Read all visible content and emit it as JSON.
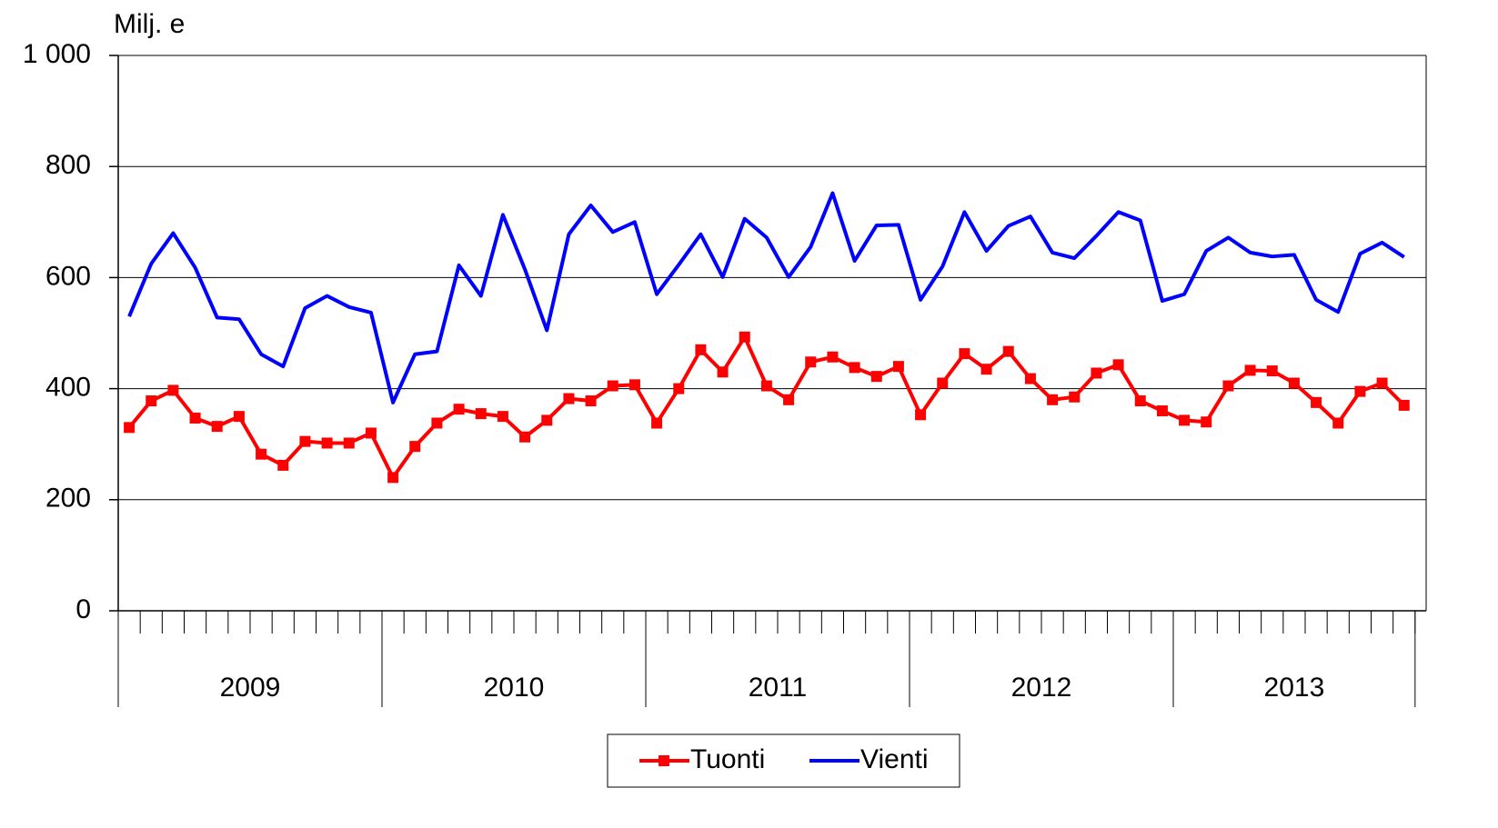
{
  "chart_data": {
    "type": "line",
    "y_axis_label": "Milj. e",
    "categories": [
      null,
      null,
      null,
      null,
      null,
      null,
      null,
      null,
      null,
      null,
      null,
      null,
      null,
      null,
      null,
      null,
      null,
      null,
      null,
      null,
      null,
      null,
      null,
      null,
      null,
      null,
      null,
      null,
      null,
      null,
      null,
      null,
      null,
      null,
      null,
      null,
      null,
      null,
      null,
      null,
      null,
      null,
      null,
      null,
      null,
      null,
      null,
      null,
      null,
      null,
      null,
      null,
      null,
      null,
      null,
      null,
      null,
      null,
      null
    ],
    "year_groups": [
      {
        "label": "2009",
        "months": 12
      },
      {
        "label": "2010",
        "months": 12
      },
      {
        "label": "2011",
        "months": 12
      },
      {
        "label": "2012",
        "months": 12
      },
      {
        "label": "2013",
        "months": 11
      }
    ],
    "series": [
      {
        "name": "Tuonti",
        "color": "#ff0000",
        "marker": "square",
        "values": [
          330,
          378,
          397,
          347,
          332,
          350,
          282,
          262,
          305,
          302,
          302,
          320,
          240,
          296,
          338,
          363,
          355,
          350,
          313,
          343,
          382,
          378,
          405,
          407,
          338,
          400,
          470,
          430,
          493,
          405,
          380,
          448,
          457,
          438,
          422,
          440,
          353,
          410,
          463,
          435,
          467,
          418,
          380,
          385,
          428,
          443,
          378,
          360,
          343,
          340,
          405,
          433,
          432,
          410,
          375,
          338,
          395,
          410,
          370
        ]
      },
      {
        "name": "Vienti",
        "color": "#0000ff",
        "marker": "none",
        "values": [
          530,
          625,
          680,
          618,
          528,
          525,
          462,
          440,
          545,
          567,
          547,
          537,
          375,
          462,
          467,
          622,
          567,
          713,
          615,
          505,
          678,
          730,
          682,
          700,
          570,
          623,
          678,
          601,
          706,
          672,
          601,
          655,
          752,
          630,
          694,
          695,
          560,
          620,
          718,
          648,
          693,
          710,
          645,
          635,
          675,
          718,
          703,
          558,
          570,
          648,
          672,
          645,
          638,
          641,
          560,
          538,
          643,
          663,
          637
        ]
      }
    ],
    "ylim": [
      0,
      1000
    ],
    "yticks": [
      0,
      200,
      400,
      600,
      800,
      {
        "value": 1000,
        "label": "1 000"
      }
    ],
    "grid": true,
    "legend": "bottom"
  }
}
